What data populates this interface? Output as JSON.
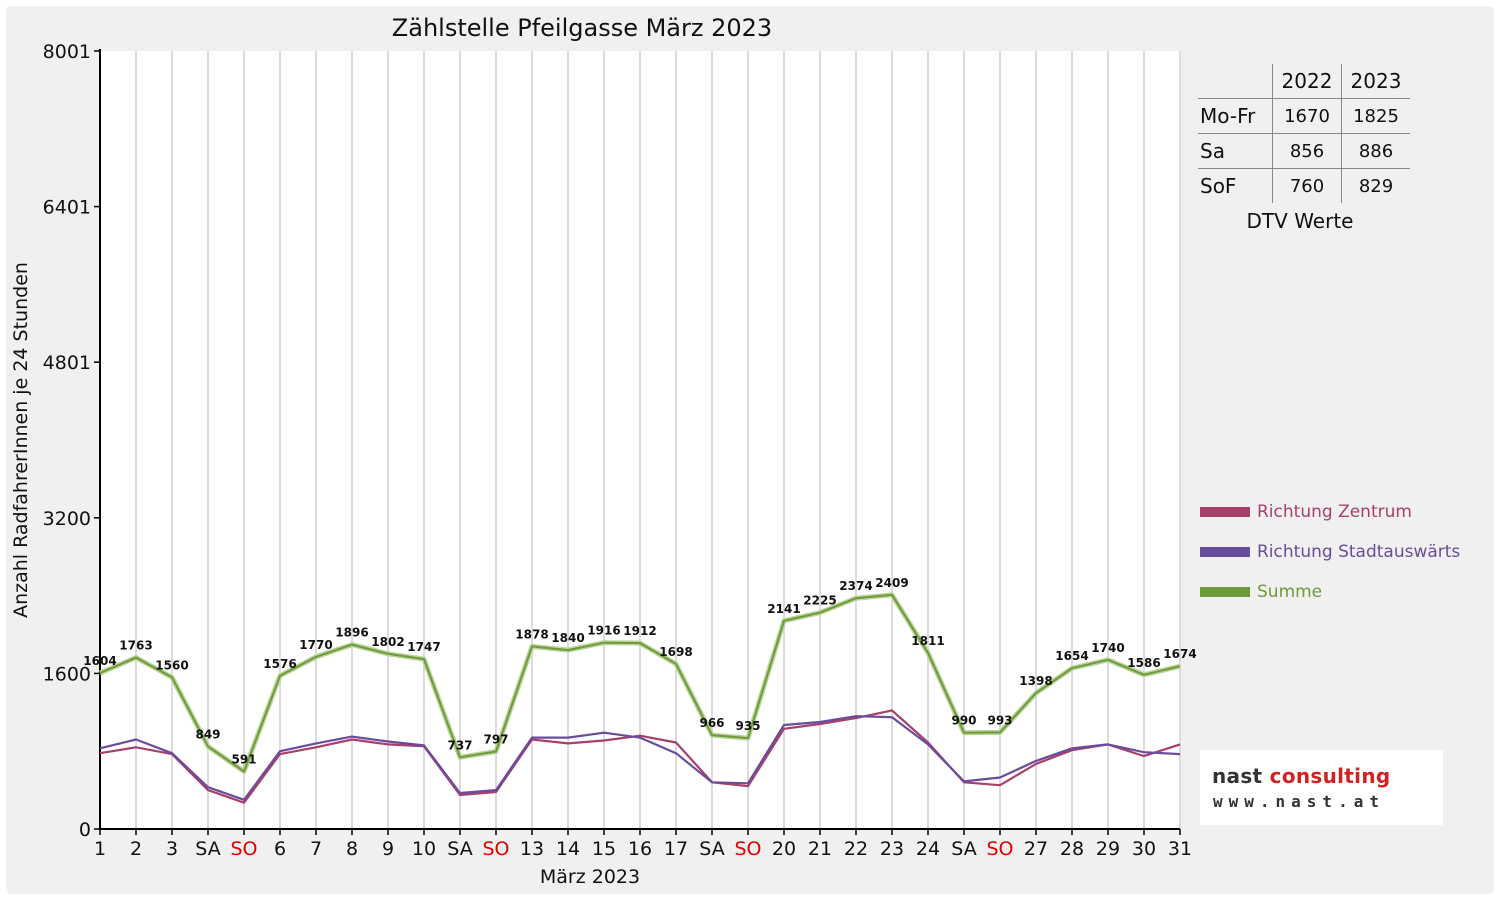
{
  "chart_data": {
    "type": "line",
    "title": "Zählstelle Pfeilgasse März 2023",
    "xlabel": "März 2023",
    "ylabel": "Anzahl RadfahrerInnen je 24 Stunden",
    "ylim": [
      0,
      8001
    ],
    "y_ticks": [
      "0",
      "1600",
      "3200",
      "4801",
      "6401",
      "8001"
    ],
    "y_tick_values": [
      0,
      1600,
      3200,
      4801,
      6401,
      8001
    ],
    "grid": "vertical",
    "categories": [
      "1",
      "2",
      "3",
      "SA",
      "SO",
      "6",
      "7",
      "8",
      "9",
      "10",
      "SA",
      "SO",
      "13",
      "14",
      "15",
      "16",
      "17",
      "SA",
      "SO",
      "20",
      "21",
      "22",
      "23",
      "24",
      "SA",
      "SO",
      "27",
      "28",
      "29",
      "30",
      "31"
    ],
    "series": [
      {
        "name": "Richtung Zentrum",
        "color": "#a8406e",
        "values": [
          780,
          840,
          770,
          400,
          270,
          770,
          840,
          920,
          870,
          850,
          350,
          380,
          920,
          880,
          910,
          960,
          890,
          480,
          440,
          1030,
          1080,
          1140,
          1220,
          890,
          480,
          450,
          670,
          810,
          870,
          750,
          870
        ]
      },
      {
        "name": "Richtung Stadtauswärts",
        "color": "#6a4c9c",
        "values": [
          830,
          920,
          780,
          430,
          300,
          800,
          880,
          950,
          900,
          860,
          370,
          400,
          940,
          940,
          990,
          940,
          780,
          480,
          470,
          1070,
          1100,
          1160,
          1150,
          870,
          490,
          530,
          700,
          830,
          870,
          790,
          770
        ]
      },
      {
        "name": "Summe",
        "color": "#6e9a3a",
        "values": [
          1604,
          1763,
          1560,
          849,
          591,
          1576,
          1770,
          1896,
          1802,
          1747,
          737,
          797,
          1878,
          1840,
          1916,
          1912,
          1698,
          966,
          935,
          2141,
          2225,
          2374,
          2409,
          1811,
          990,
          993,
          1398,
          1654,
          1740,
          1586,
          1674
        ],
        "labels": [
          "1604",
          "1763",
          "1560",
          "849",
          "591",
          "1576",
          "1770",
          "1896",
          "1802",
          "1747",
          "737",
          "797",
          "1878",
          "1840",
          "1916",
          "1912",
          "1698",
          "966",
          "935",
          "2141",
          "2225",
          "2374",
          "2409",
          "1811",
          "990",
          "993",
          "1398",
          "1654",
          "1740",
          "1586",
          "1674"
        ]
      }
    ],
    "legend_position": "right"
  },
  "dtv": {
    "col_2022": "2022",
    "col_2023": "2023",
    "rows": [
      {
        "label": "Mo-Fr",
        "v2022": "1670",
        "v2023": "1825"
      },
      {
        "label": "Sa",
        "v2022": "856",
        "v2023": "886"
      },
      {
        "label": "SoF",
        "v2022": "760",
        "v2023": "829"
      }
    ],
    "caption": "DTV Werte"
  },
  "logo": {
    "name_dark": "nast ",
    "name_red": "consulting",
    "url": "www.nast.at"
  },
  "colors": {
    "sunday_label": "#e00000",
    "axis": "#000000",
    "grid": "#dcdcdc",
    "summe": "#6e9a3a",
    "zentrum": "#a8406e",
    "stadtauswaerts": "#6a4c9c"
  }
}
